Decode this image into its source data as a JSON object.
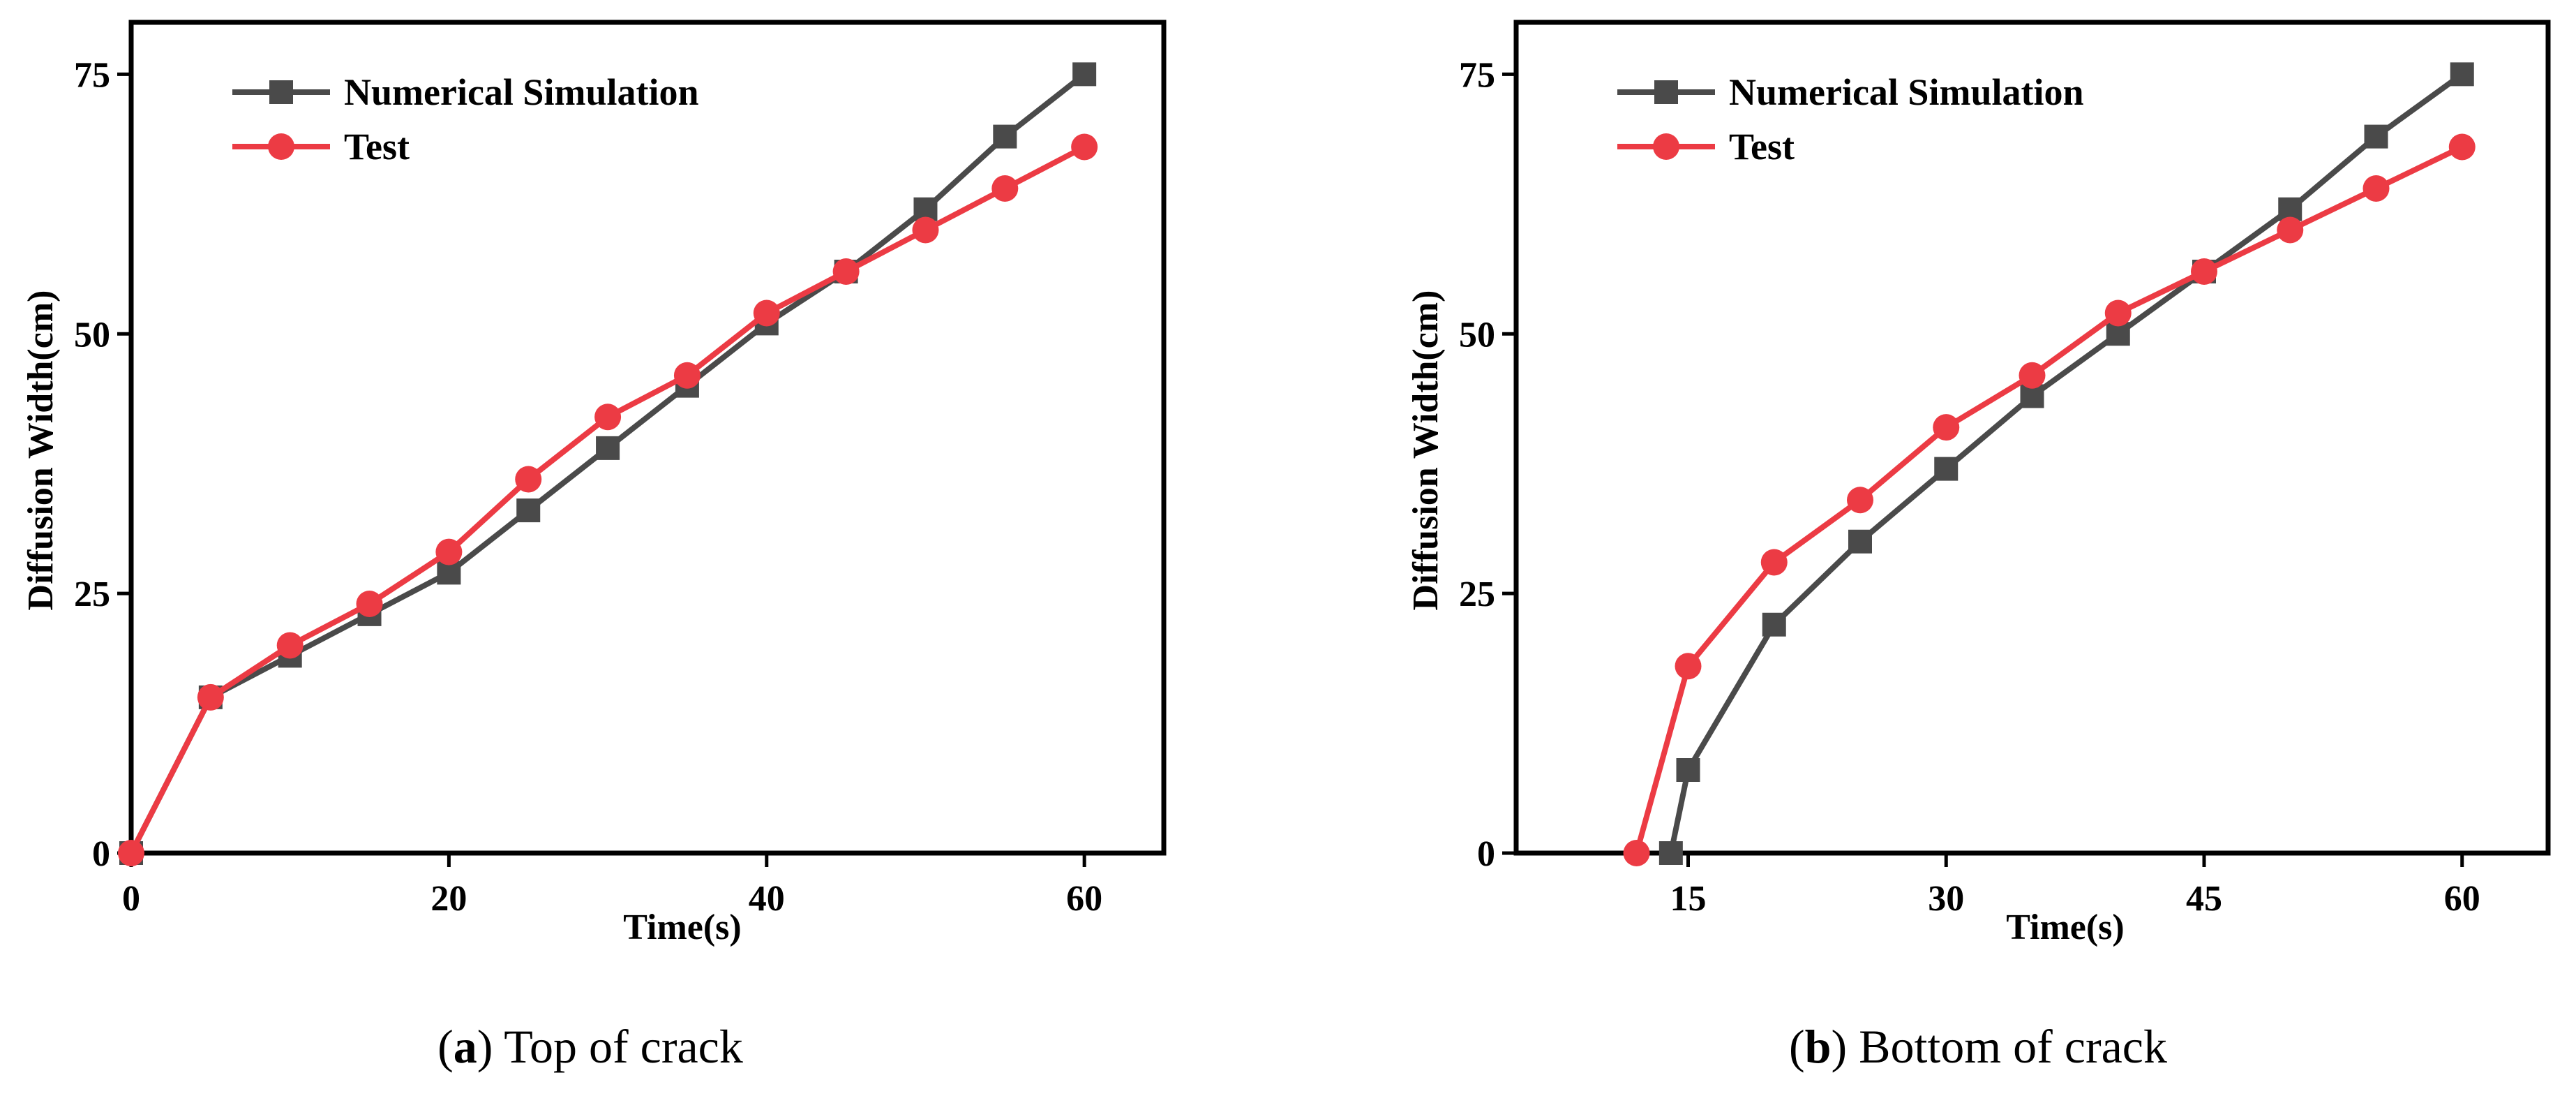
{
  "colors": {
    "numerical": "#4a4a4a",
    "test": "#ec3b44",
    "axis": "#000000"
  },
  "chart_data": [
    {
      "type": "line",
      "panel": "a",
      "caption": {
        "letter": "a",
        "text": "Top of crack"
      },
      "xlabel": "Time(s)",
      "ylabel": "Diffusion Width(cm)",
      "xlim": [
        0,
        65
      ],
      "ylim": [
        0,
        80
      ],
      "xticks": [
        0,
        20,
        40,
        60
      ],
      "yticks": [
        0,
        25,
        50,
        75
      ],
      "legend_position": "top-left",
      "series": [
        {
          "name": "Numerical Simulation",
          "marker": "square",
          "x": [
            0,
            5,
            10,
            15,
            20,
            25,
            30,
            35,
            40,
            45,
            50,
            55,
            60
          ],
          "y": [
            0,
            15,
            19,
            23,
            27,
            33,
            39,
            45,
            51,
            56,
            62,
            69,
            75
          ]
        },
        {
          "name": "Test",
          "marker": "circle",
          "x": [
            0,
            5,
            10,
            15,
            20,
            25,
            30,
            35,
            40,
            45,
            50,
            55,
            60
          ],
          "y": [
            0,
            15,
            20,
            24,
            29,
            36,
            42,
            46,
            52,
            56,
            60,
            64,
            68
          ]
        }
      ]
    },
    {
      "type": "line",
      "panel": "b",
      "caption": {
        "letter": "b",
        "text": "Bottom of crack"
      },
      "xlabel": "Time(s)",
      "ylabel": "Diffusion Width(cm)",
      "xlim": [
        5,
        65
      ],
      "ylim": [
        0,
        80
      ],
      "xticks": [
        15,
        30,
        45,
        60
      ],
      "yticks": [
        0,
        25,
        50,
        75
      ],
      "legend_position": "top-left",
      "series": [
        {
          "name": "Numerical Simulation",
          "marker": "square",
          "x": [
            14,
            15,
            20,
            25,
            30,
            35,
            40,
            45,
            50,
            55,
            60
          ],
          "y": [
            0,
            8,
            22,
            30,
            37,
            44,
            50,
            56,
            62,
            69,
            75
          ]
        },
        {
          "name": "Test",
          "marker": "circle",
          "x": [
            12,
            15,
            20,
            25,
            30,
            35,
            40,
            45,
            50,
            55,
            60
          ],
          "y": [
            0,
            18,
            28,
            34,
            41,
            46,
            52,
            56,
            60,
            64,
            68
          ]
        }
      ]
    }
  ]
}
